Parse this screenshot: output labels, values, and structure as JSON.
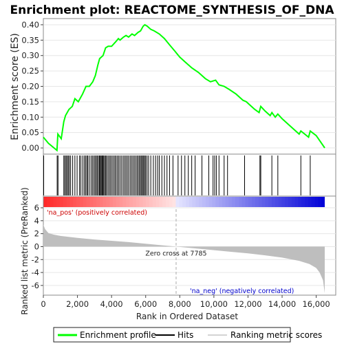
{
  "chart_data": {
    "type": "line",
    "title": "Enrichment plot: REACTOME_SYNTHESIS_OF_DNA",
    "panels": {
      "enrichment": {
        "ylabel": "Enrichment score (ES)",
        "ylim": [
          -0.02,
          0.42
        ],
        "yticks": [
          "0.00",
          "0.05",
          "0.10",
          "0.15",
          "0.20",
          "0.25",
          "0.30",
          "0.35",
          "0.40"
        ],
        "series": [
          {
            "name": "Enrichment profile",
            "color": "#00ff00",
            "x": [
              0,
              300,
              800,
              850,
              1050,
              1200,
              1300,
              1500,
              1700,
              1850,
              2050,
              2300,
              2500,
              2700,
              2900,
              3050,
              3200,
              3300,
              3500,
              3650,
              3800,
              4000,
              4250,
              4400,
              4500,
              4700,
              4850,
              5000,
              5200,
              5350,
              5550,
              5700,
              5850,
              5950,
              6100,
              6300,
              6500,
              6800,
              7100,
              7400,
              7700,
              8000,
              8300,
              8700,
              9100,
              9500,
              9800,
              10100,
              10300,
              10600,
              10900,
              11300,
              11700,
              11900,
              12100,
              12400,
              12650,
              12750,
              13000,
              13300,
              13400,
              13600,
              13750,
              14000,
              14400,
              15000,
              15100,
              15550,
              15650,
              16000,
              16500
            ],
            "y": [
              0.035,
              0.015,
              -0.008,
              0.045,
              0.03,
              0.085,
              0.105,
              0.125,
              0.135,
              0.16,
              0.15,
              0.175,
              0.2,
              0.2,
              0.215,
              0.235,
              0.27,
              0.29,
              0.3,
              0.325,
              0.33,
              0.33,
              0.345,
              0.355,
              0.35,
              0.36,
              0.365,
              0.36,
              0.37,
              0.365,
              0.375,
              0.38,
              0.395,
              0.4,
              0.395,
              0.385,
              0.38,
              0.37,
              0.355,
              0.335,
              0.315,
              0.295,
              0.28,
              0.26,
              0.245,
              0.225,
              0.215,
              0.22,
              0.205,
              0.2,
              0.19,
              0.175,
              0.155,
              0.15,
              0.14,
              0.125,
              0.115,
              0.135,
              0.12,
              0.105,
              0.115,
              0.1,
              0.11,
              0.095,
              0.075,
              0.045,
              0.055,
              0.035,
              0.055,
              0.04,
              0.0
            ]
          }
        ]
      },
      "hits": {
        "name": "Hits",
        "color": "#000000",
        "positions": [
          20,
          810,
          860,
          1200,
          1260,
          1330,
          1390,
          1460,
          1520,
          1600,
          1720,
          1850,
          1980,
          2120,
          2200,
          2310,
          2400,
          2480,
          2550,
          2610,
          2700,
          2800,
          2880,
          2960,
          3030,
          3100,
          3160,
          3230,
          3290,
          3340,
          3390,
          3440,
          3490,
          3540,
          3600,
          3660,
          3720,
          3800,
          3880,
          3950,
          4030,
          4110,
          4190,
          4260,
          4340,
          4420,
          4500,
          4590,
          4680,
          4760,
          4840,
          4920,
          5000,
          5090,
          5170,
          5250,
          5330,
          5410,
          5490,
          5560,
          5630,
          5700,
          5760,
          5820,
          5880,
          5940,
          6000,
          6080,
          6170,
          6300,
          6450,
          6580,
          6700,
          6800,
          6950,
          7100,
          7250,
          7400,
          7600,
          7900,
          8100,
          8300,
          8500,
          8700,
          8900,
          9300,
          9700,
          9950,
          10050,
          10150,
          10300,
          10600,
          10800,
          11800,
          12700,
          12750,
          13400,
          13750,
          15100,
          15650
        ]
      },
      "ranking": {
        "ylabel": "Ranked list metric (PreRanked)",
        "xlabel": "Rank in Ordered Dataset",
        "ylim": [
          -7.5,
          6
        ],
        "yticks": [
          "6",
          "4",
          "2",
          "0",
          "-2",
          "-4",
          "-6"
        ],
        "x_ticks": [
          "0",
          "2,000",
          "4,000",
          "6,000",
          "8,000",
          "10,000",
          "12,000",
          "14,000",
          "16,000"
        ],
        "x_max": 16500,
        "zero_cross": 7785,
        "zero_cross_label": "Zero cross at 7785",
        "pos_label": "'na_pos' (positively correlated)",
        "neg_label": "'na_neg' (negatively correlated)",
        "metric_curve": {
          "x": [
            0,
            100,
            300,
            600,
            1000,
            2000,
            3000,
            4000,
            5000,
            6000,
            7000,
            7785,
            9000,
            10000,
            11000,
            12000,
            13000,
            14000,
            15000,
            15600,
            16000,
            16200,
            16400,
            16500
          ],
          "y": [
            3.4,
            2.7,
            2.1,
            1.85,
            1.65,
            1.35,
            1.1,
            0.9,
            0.7,
            0.45,
            0.2,
            0.0,
            -0.3,
            -0.55,
            -0.8,
            -1.05,
            -1.35,
            -1.7,
            -2.2,
            -2.7,
            -3.3,
            -4.0,
            -5.2,
            -7.2
          ]
        }
      }
    },
    "legend": {
      "items": [
        "Enrichment profile",
        "Hits",
        "Ranking metric scores"
      ],
      "colors": [
        "#00ff00",
        "#000000",
        "#d3d3d3"
      ],
      "placement": "bottom"
    }
  }
}
